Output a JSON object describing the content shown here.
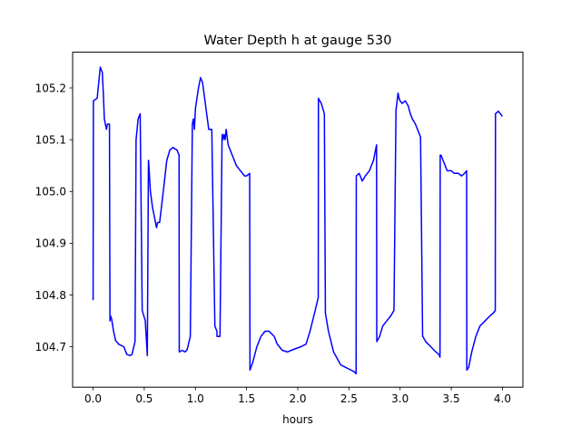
{
  "chart_data": {
    "type": "line",
    "title": "Water Depth h at gauge 530",
    "xlabel": "hours",
    "ylabel": "",
    "xlim": [
      -0.2,
      4.2
    ],
    "ylim": [
      104.622,
      105.269
    ],
    "xticks": [
      0.0,
      0.5,
      1.0,
      1.5,
      2.0,
      2.5,
      3.0,
      3.5,
      4.0
    ],
    "xtick_labels": [
      "0.0",
      "0.5",
      "1.0",
      "1.5",
      "2.0",
      "2.5",
      "3.0",
      "3.5",
      "4.0"
    ],
    "yticks": [
      104.7,
      104.8,
      104.9,
      105.0,
      105.1,
      105.2
    ],
    "ytick_labels": [
      "104.7",
      "104.8",
      "104.9",
      "105.0",
      "105.1",
      "105.2"
    ],
    "grid": false,
    "series": [
      {
        "color": "#0000ff",
        "x": [
          0.0,
          0.003,
          0.04,
          0.07,
          0.08,
          0.09,
          0.1,
          0.11,
          0.13,
          0.14,
          0.16,
          0.165,
          0.17,
          0.18,
          0.2,
          0.22,
          0.25,
          0.3,
          0.33,
          0.36,
          0.38,
          0.41,
          0.42,
          0.43,
          0.44,
          0.46,
          0.48,
          0.481,
          0.51,
          0.53,
          0.541,
          0.542,
          0.56,
          0.58,
          0.6,
          0.62,
          0.63,
          0.65,
          0.68,
          0.72,
          0.75,
          0.78,
          0.82,
          0.84,
          0.842,
          0.87,
          0.9,
          0.92,
          0.95,
          0.97,
          0.98,
          0.99,
          1.0,
          1.03,
          1.05,
          1.07,
          1.09,
          1.11,
          1.13,
          1.16,
          1.19,
          1.21,
          1.211,
          1.24,
          1.26,
          1.262,
          1.27,
          1.28,
          1.29,
          1.3,
          1.32,
          1.36,
          1.4,
          1.44,
          1.48,
          1.5,
          1.53,
          1.533,
          1.56,
          1.6,
          1.64,
          1.68,
          1.72,
          1.77,
          1.8,
          1.85,
          1.9,
          1.96,
          2.03,
          2.08,
          2.12,
          2.17,
          2.2,
          2.202,
          2.23,
          2.26,
          2.27,
          2.3,
          2.35,
          2.42,
          2.49,
          2.55,
          2.57,
          2.572,
          2.6,
          2.61,
          2.63,
          2.66,
          2.7,
          2.74,
          2.77,
          2.772,
          2.8,
          2.83,
          2.87,
          2.91,
          2.94,
          2.96,
          2.962,
          2.98,
          2.99,
          3.0,
          3.02,
          3.05,
          3.08,
          3.1,
          3.12,
          3.15,
          3.2,
          3.22,
          3.222,
          3.25,
          3.3,
          3.35,
          3.38,
          3.39,
          3.392,
          3.4,
          3.42,
          3.44,
          3.46,
          3.5,
          3.53,
          3.57,
          3.6,
          3.63,
          3.65,
          3.652,
          3.67,
          3.7,
          3.74,
          3.78,
          3.83,
          3.88,
          3.91,
          3.93,
          3.932,
          3.96,
          3.98,
          4.0
        ],
        "values": [
          104.79,
          105.175,
          105.18,
          105.24,
          105.235,
          105.23,
          105.19,
          105.14,
          105.12,
          105.13,
          105.13,
          104.75,
          104.76,
          104.755,
          104.73,
          104.712,
          104.705,
          104.7,
          104.685,
          104.683,
          104.685,
          104.71,
          105.1,
          105.12,
          105.14,
          105.15,
          104.77,
          104.77,
          104.75,
          104.683,
          105.06,
          105.06,
          105.0,
          104.97,
          104.95,
          104.93,
          104.94,
          104.94,
          104.99,
          105.06,
          105.08,
          105.085,
          105.08,
          105.07,
          104.69,
          104.693,
          104.69,
          104.695,
          104.72,
          105.13,
          105.14,
          105.12,
          105.16,
          105.2,
          105.22,
          105.21,
          105.18,
          105.15,
          105.12,
          105.12,
          104.74,
          104.73,
          104.72,
          104.72,
          105.1,
          105.11,
          105.1,
          105.11,
          105.1,
          105.12,
          105.09,
          105.07,
          105.05,
          105.04,
          105.03,
          105.03,
          105.035,
          104.655,
          104.67,
          104.7,
          104.72,
          104.73,
          104.73,
          104.72,
          104.705,
          104.693,
          104.69,
          104.695,
          104.7,
          104.705,
          104.73,
          104.77,
          104.795,
          105.18,
          105.17,
          105.15,
          104.765,
          104.73,
          104.69,
          104.665,
          104.658,
          104.652,
          104.648,
          105.03,
          105.035,
          105.03,
          105.02,
          105.03,
          105.04,
          105.06,
          105.09,
          104.71,
          104.72,
          104.74,
          104.75,
          104.76,
          104.77,
          105.16,
          105.16,
          105.19,
          105.18,
          105.175,
          105.17,
          105.175,
          105.165,
          105.15,
          105.14,
          105.13,
          105.105,
          104.72,
          104.72,
          104.71,
          104.7,
          104.69,
          104.685,
          104.68,
          105.07,
          105.07,
          105.06,
          105.05,
          105.04,
          105.04,
          105.035,
          105.035,
          105.03,
          105.035,
          105.04,
          104.655,
          104.66,
          104.69,
          104.72,
          104.74,
          104.75,
          104.76,
          104.765,
          104.77,
          105.15,
          105.155,
          105.15,
          105.145
        ]
      }
    ]
  }
}
